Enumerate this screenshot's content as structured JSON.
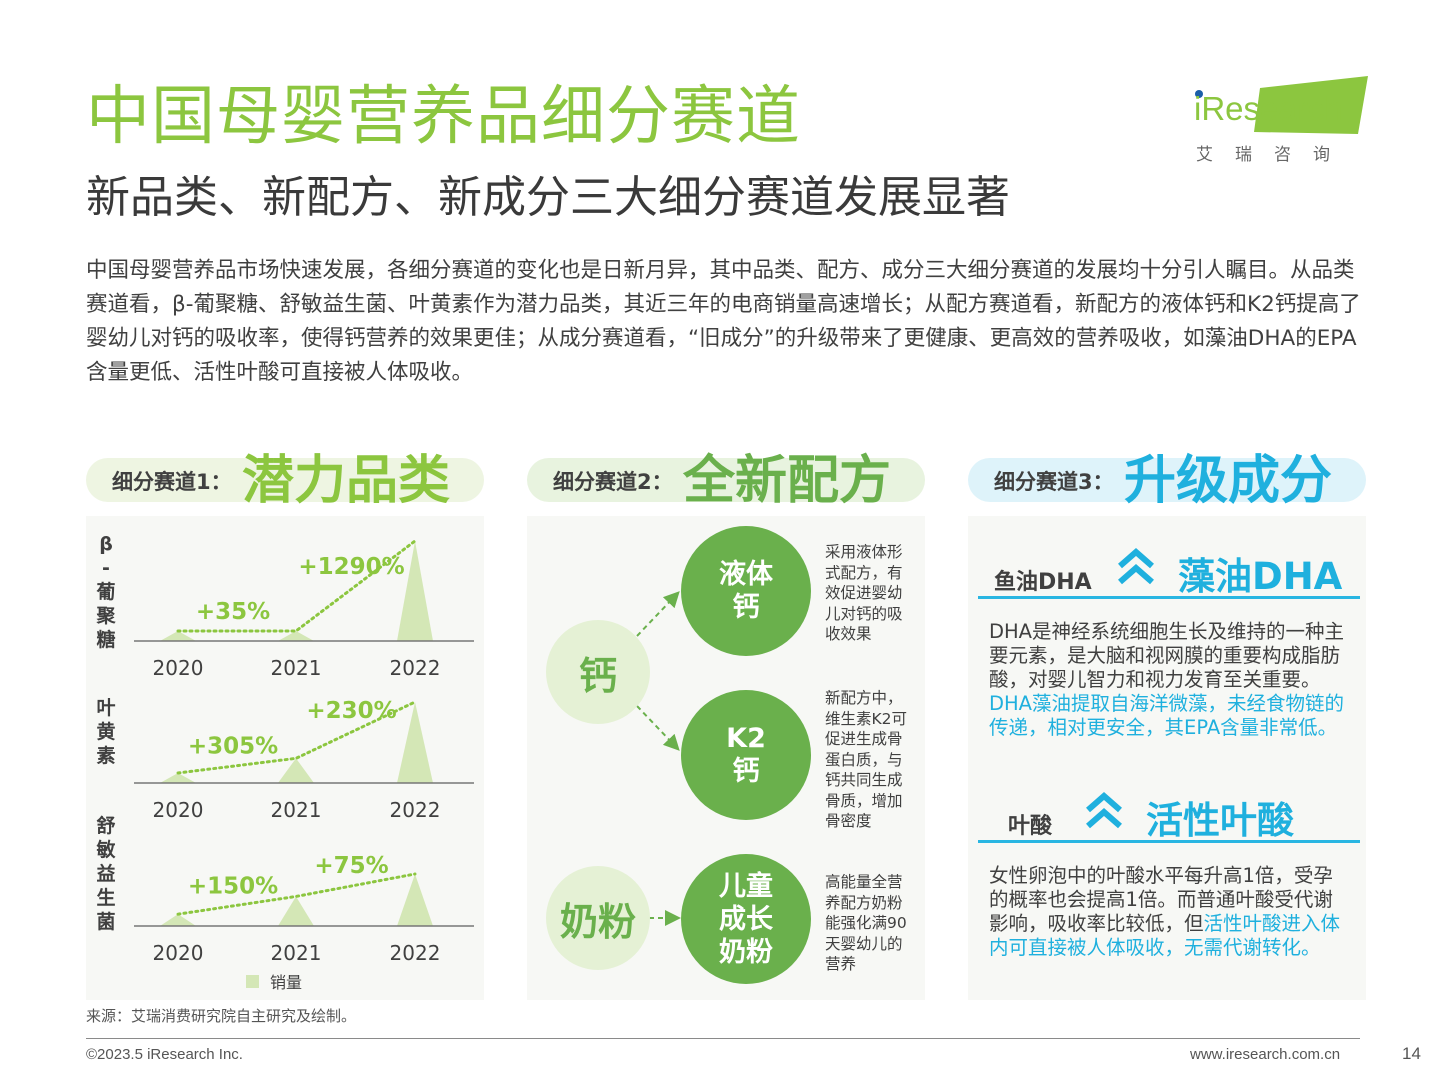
{
  "header": {
    "title": "中国母婴营养品细分赛道",
    "subtitle": "新品类、新配方、新成分三大细分赛道发展显著"
  },
  "logo": {
    "brand": "iResearch",
    "cn": "艾瑞咨询"
  },
  "intro": "中国母婴营养品市场快速发展，各细分赛道的变化也是日新月异，其中品类、配方、成分三大细分赛道的发展均十分引人瞩目。从品类赛道看，β-葡聚糖、舒敏益生菌、叶黄素作为潜力品类，其近三年的电商销量高速增长；从配方赛道看，新配方的液体钙和K2钙提高了婴幼儿对钙的吸收率，使得钙营养的效果更佳；从成分赛道看，“旧成分”的升级带来了更健康、更高效的营养吸收，如藻油DHA的EPA含量更低、活性叶酸可直接被人体吸收。",
  "track1": {
    "label": "细分赛道1：",
    "title": "潜力品类",
    "color": "#8cc63f",
    "pill_bg": "#eef5e2",
    "legend": "销量",
    "chart_data": [
      {
        "type": "area",
        "name": "β-葡聚糖",
        "label_chars": [
          "β",
          "-",
          "葡",
          "聚",
          "糖"
        ],
        "categories": [
          "2020",
          "2021",
          "2022"
        ],
        "values": [
          1,
          1.35,
          18.7
        ],
        "growth": [
          "+35%",
          "+1290%"
        ]
      },
      {
        "type": "area",
        "name": "叶黄素",
        "label_chars": [
          "叶",
          "黄",
          "素"
        ],
        "categories": [
          "2020",
          "2021",
          "2022"
        ],
        "values": [
          1,
          4.05,
          13.3
        ],
        "growth": [
          "+305%",
          "+230%"
        ]
      },
      {
        "type": "area",
        "name": "舒敏益生菌",
        "label_chars": [
          "舒",
          "敏",
          "益",
          "生",
          "菌"
        ],
        "categories": [
          "2020",
          "2021",
          "2022"
        ],
        "values": [
          1,
          2.5,
          4.4
        ],
        "growth": [
          "+150%",
          "+75%"
        ]
      }
    ]
  },
  "track2": {
    "label": "细分赛道2：",
    "title": "全新配方",
    "color": "#6ab04c",
    "pill_bg": "#e8f3df",
    "source1": "钙",
    "source2": "奶粉",
    "items": [
      {
        "name_lines": [
          "液体",
          "钙"
        ],
        "desc": "采用液体形式配方，有效促进婴幼儿对钙的吸收效果"
      },
      {
        "name_lines": [
          "K2",
          "钙"
        ],
        "desc": "新配方中，维生素K2可促进生成骨蛋白质，与钙共同生成骨质，增加骨密度"
      },
      {
        "name_lines": [
          "儿童",
          "成长",
          "奶粉"
        ],
        "desc": "高能量全营养配方奶粉能强化满90天婴幼儿的营养"
      }
    ]
  },
  "track3": {
    "label": "细分赛道3：",
    "title": "升级成分",
    "color": "#1fb0de",
    "pill_bg": "#def3fa",
    "dha": {
      "old": "鱼油DHA",
      "new": "藻油DHA",
      "text_plain": "DHA是神经系统细胞生长及维持的一种主要元素，是大脑和视网膜的重要构成脂肪酸，对婴儿智力和视力发育至关重要。",
      "text_hl": "DHA藻油提取自海洋微藻，未经食物链的传递，相对更安全，其EPA含量非常低。"
    },
    "folate": {
      "old": "叶酸",
      "new": "活性叶酸",
      "text_plain": "女性卵泡中的叶酸水平每升高1倍，受孕的概率也会提高1倍。而普通叶酸受代谢影响，吸收率比较低，但",
      "text_hl": "活性叶酸进入体内可直接被人体吸收，无需代谢转化。"
    }
  },
  "footer": {
    "source": "来源：艾瑞消费研究院自主研究及绘制。",
    "copyright": "©2023.5 iResearch Inc.",
    "url": "www.iresearch.com.cn",
    "page": "14"
  }
}
